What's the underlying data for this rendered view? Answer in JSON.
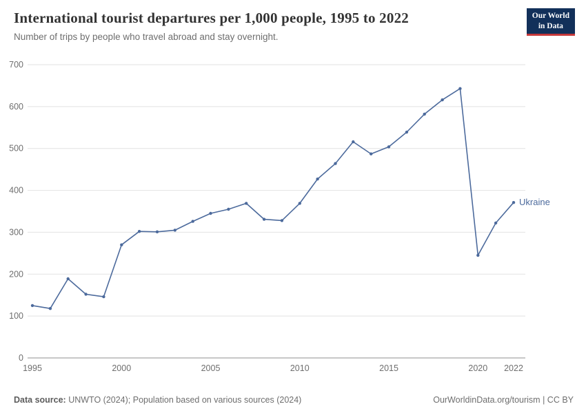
{
  "header": {
    "title": "International tourist departures per 1,000 people, 1995 to 2022",
    "subtitle": "Number of trips by people who travel abroad and stay overnight.",
    "logo": {
      "line1": "Our World",
      "line2": "in Data"
    }
  },
  "chart_data": {
    "type": "line",
    "title": "International tourist departures per 1,000 people, 1995 to 2022",
    "subtitle": "Number of trips by people who travel abroad and stay overnight.",
    "xlabel": "",
    "ylabel": "",
    "ylim": [
      0,
      700
    ],
    "yticks": [
      0,
      100,
      200,
      300,
      400,
      500,
      600,
      700
    ],
    "xlim": [
      1995,
      2022
    ],
    "xticks": [
      1995,
      2000,
      2005,
      2010,
      2015,
      2020,
      2022
    ],
    "grid": true,
    "legend_position": "end-of-line",
    "line_color": "#4c6a9c",
    "grid_color": "#e2e2e2",
    "axis_color": "#8f8f8f",
    "tick_label_color": "#6e6e6e",
    "series": [
      {
        "name": "Ukraine",
        "color": "#4c6a9c",
        "x": [
          1995,
          1996,
          1997,
          1998,
          1999,
          2000,
          2001,
          2002,
          2003,
          2004,
          2005,
          2006,
          2007,
          2008,
          2009,
          2010,
          2011,
          2012,
          2013,
          2014,
          2015,
          2016,
          2017,
          2018,
          2019,
          2020,
          2021,
          2022
        ],
        "values": [
          125,
          118,
          189,
          152,
          146,
          270,
          302,
          301,
          305,
          326,
          345,
          355,
          369,
          331,
          328,
          369,
          427,
          464,
          516,
          487,
          504,
          539,
          582,
          616,
          643,
          245,
          322,
          371
        ]
      }
    ]
  },
  "footer": {
    "source_label": "Data source:",
    "source_text": " UNWTO (2024); Population based on various sources (2024)",
    "right_text": "OurWorldinData.org/tourism | CC BY"
  }
}
